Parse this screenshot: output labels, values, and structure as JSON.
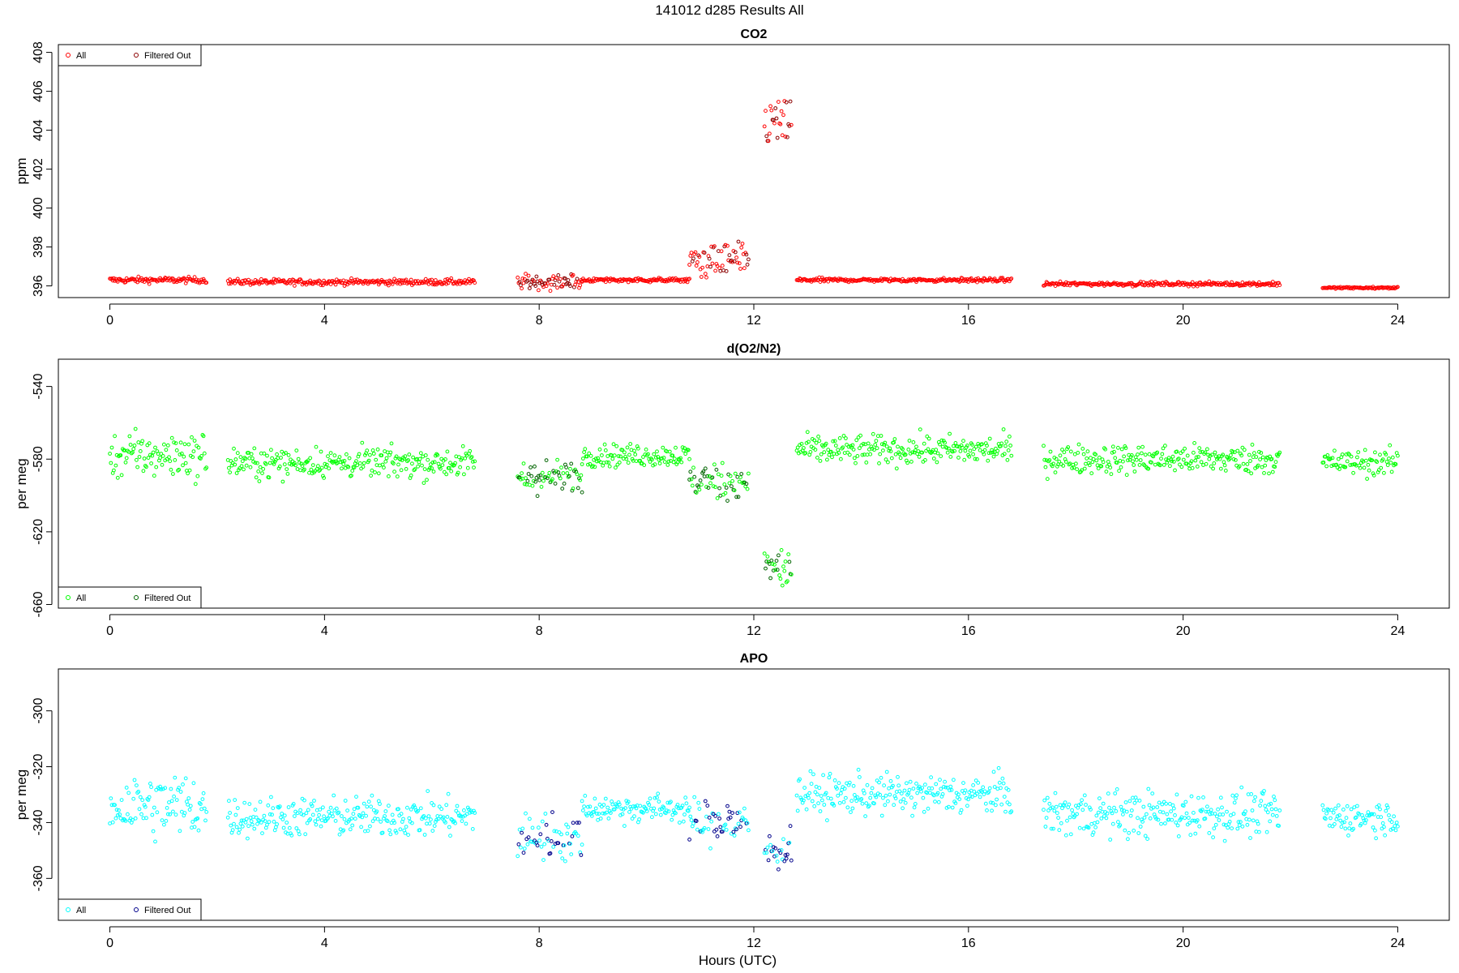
{
  "figure": {
    "title": "141012   d285   Results All",
    "xlabel": "Hours (UTC)"
  },
  "chart_data": [
    {
      "type": "scatter",
      "title": "CO2",
      "ylabel": "ppm",
      "xlim": [
        -0.96,
        24.96
      ],
      "ylim": [
        395.4,
        408.4
      ],
      "xticks": [
        0,
        4,
        8,
        12,
        16,
        20,
        24
      ],
      "yticks": [
        396,
        398,
        400,
        402,
        404,
        406,
        408
      ],
      "legend_position": "top-left",
      "grid": false,
      "series": [
        {
          "name": "All",
          "color": "#ff0000",
          "key": "all"
        },
        {
          "name": "Filtered Out",
          "color": "#8b0000",
          "key": "filtered"
        }
      ],
      "segments": [
        {
          "x": [
            0.0,
            1.8
          ],
          "level": 396.3,
          "noise": 0.15
        },
        {
          "x": [
            2.2,
            6.8
          ],
          "level": 396.2,
          "noise": 0.15
        },
        {
          "x": [
            7.6,
            8.8
          ],
          "level": 396.2,
          "noise": 0.4
        },
        {
          "x": [
            8.8,
            10.8
          ],
          "level": 396.3,
          "noise": 0.1
        },
        {
          "x": [
            10.8,
            11.9
          ],
          "level": 397.3,
          "noise": 0.8
        },
        {
          "x": [
            12.2,
            12.7
          ],
          "level": 404.3,
          "noise": 1.5
        },
        {
          "x": [
            12.8,
            16.8
          ],
          "level": 396.3,
          "noise": 0.1
        },
        {
          "x": [
            17.4,
            21.8
          ],
          "level": 396.1,
          "noise": 0.1
        },
        {
          "x": [
            22.6,
            24.0
          ],
          "level": 395.9,
          "noise": 0.05
        }
      ],
      "filtered_ranges": [
        [
          7.6,
          8.8
        ],
        [
          10.8,
          11.9
        ],
        [
          12.2,
          12.7
        ]
      ]
    },
    {
      "type": "scatter",
      "title": "d(O2/N2)",
      "ylabel": "per meg",
      "xlim": [
        -0.96,
        24.96
      ],
      "ylim": [
        -662,
        -525
      ],
      "xticks": [
        0,
        4,
        8,
        12,
        16,
        20,
        24
      ],
      "yticks": [
        -540,
        -580,
        -620,
        -660
      ],
      "legend_position": "bottom-left",
      "grid": false,
      "series": [
        {
          "name": "All",
          "color": "#00ff00",
          "key": "all"
        },
        {
          "name": "Filtered Out",
          "color": "#006400",
          "key": "filtered"
        }
      ],
      "segments": [
        {
          "x": [
            0.0,
            1.8
          ],
          "level": -578,
          "noise": 12
        },
        {
          "x": [
            2.2,
            6.8
          ],
          "level": -582,
          "noise": 8
        },
        {
          "x": [
            7.6,
            8.8
          ],
          "level": -590,
          "noise": 9
        },
        {
          "x": [
            8.8,
            10.8
          ],
          "level": -578,
          "noise": 6
        },
        {
          "x": [
            10.8,
            11.9
          ],
          "level": -592,
          "noise": 10
        },
        {
          "x": [
            12.2,
            12.7
          ],
          "level": -640,
          "noise": 12
        },
        {
          "x": [
            12.8,
            16.8
          ],
          "level": -575,
          "noise": 8
        },
        {
          "x": [
            17.4,
            21.8
          ],
          "level": -580,
          "noise": 8
        },
        {
          "x": [
            22.6,
            24.0
          ],
          "level": -582,
          "noise": 7
        }
      ],
      "filtered_ranges": [
        [
          7.6,
          8.8
        ],
        [
          10.8,
          11.9
        ],
        [
          12.2,
          12.7
        ]
      ]
    },
    {
      "type": "scatter",
      "title": "APO",
      "ylabel": "per meg",
      "xlim": [
        -0.96,
        24.96
      ],
      "ylim": [
        -375,
        -285
      ],
      "xticks": [
        0,
        4,
        8,
        12,
        16,
        20,
        24
      ],
      "yticks": [
        -300,
        -320,
        -340,
        -360
      ],
      "legend_position": "bottom-left",
      "grid": false,
      "series": [
        {
          "name": "All",
          "color": "#00ffff",
          "key": "all"
        },
        {
          "name": "Filtered Out",
          "color": "#00008b",
          "key": "filtered"
        }
      ],
      "segments": [
        {
          "x": [
            0.0,
            1.8
          ],
          "level": -334,
          "noise": 12
        },
        {
          "x": [
            2.2,
            6.8
          ],
          "level": -338,
          "noise": 7
        },
        {
          "x": [
            7.6,
            8.8
          ],
          "level": -345,
          "noise": 8
        },
        {
          "x": [
            8.8,
            10.8
          ],
          "level": -335,
          "noise": 5
        },
        {
          "x": [
            10.8,
            11.9
          ],
          "level": -340,
          "noise": 8
        },
        {
          "x": [
            12.2,
            12.7
          ],
          "level": -350,
          "noise": 7
        },
        {
          "x": [
            12.8,
            16.8
          ],
          "level": -330,
          "noise": 7
        },
        {
          "x": [
            17.4,
            21.8
          ],
          "level": -337,
          "noise": 8
        },
        {
          "x": [
            22.6,
            24.0
          ],
          "level": -338,
          "noise": 6
        }
      ],
      "filtered_ranges": [
        [
          7.6,
          8.8
        ],
        [
          10.8,
          11.9
        ],
        [
          12.2,
          12.7
        ]
      ]
    }
  ]
}
